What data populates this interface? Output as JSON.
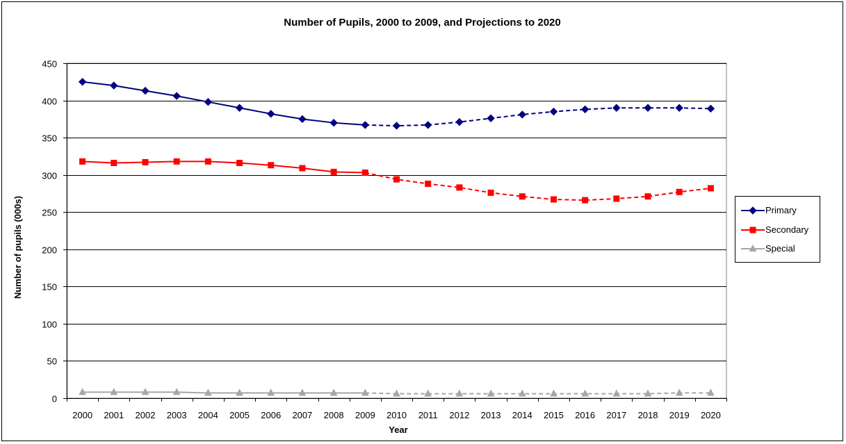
{
  "chart_data": {
    "type": "line",
    "title": "Number of Pupils, 2000 to 2009, and Projections to 2020",
    "xlabel": "Year",
    "ylabel": "Number of pupils (000s)",
    "ylim": [
      0,
      450
    ],
    "yticks": [
      0,
      50,
      100,
      150,
      200,
      250,
      300,
      350,
      400,
      450
    ],
    "grid": true,
    "legend_position": "right",
    "x": [
      "2000",
      "2001",
      "2002",
      "2003",
      "2004",
      "2005",
      "2006",
      "2007",
      "2008",
      "2009",
      "2010",
      "2011",
      "2012",
      "2013",
      "2014",
      "2015",
      "2016",
      "2017",
      "2018",
      "2019",
      "2020"
    ],
    "projection_from": "2009",
    "series": [
      {
        "name": "Primary",
        "color": "#000080",
        "marker": "diamond",
        "values": [
          425,
          420,
          413,
          406,
          398,
          390,
          382,
          375,
          370,
          367,
          366,
          367,
          371,
          376,
          381,
          385,
          388,
          390,
          390,
          390,
          389
        ]
      },
      {
        "name": "Secondary",
        "color": "#ff0000",
        "marker": "square",
        "values": [
          318,
          316,
          317,
          318,
          318,
          316,
          313,
          309,
          304,
          303,
          294,
          288,
          283,
          276,
          271,
          267,
          266,
          268,
          271,
          277,
          282
        ]
      },
      {
        "name": "Special",
        "color": "#a6a6a6",
        "marker": "triangle",
        "values": [
          8,
          8,
          8,
          8,
          7,
          7,
          7,
          7,
          7,
          7,
          6,
          6,
          6,
          6,
          6,
          6,
          6,
          6,
          6,
          7,
          7
        ]
      }
    ]
  }
}
